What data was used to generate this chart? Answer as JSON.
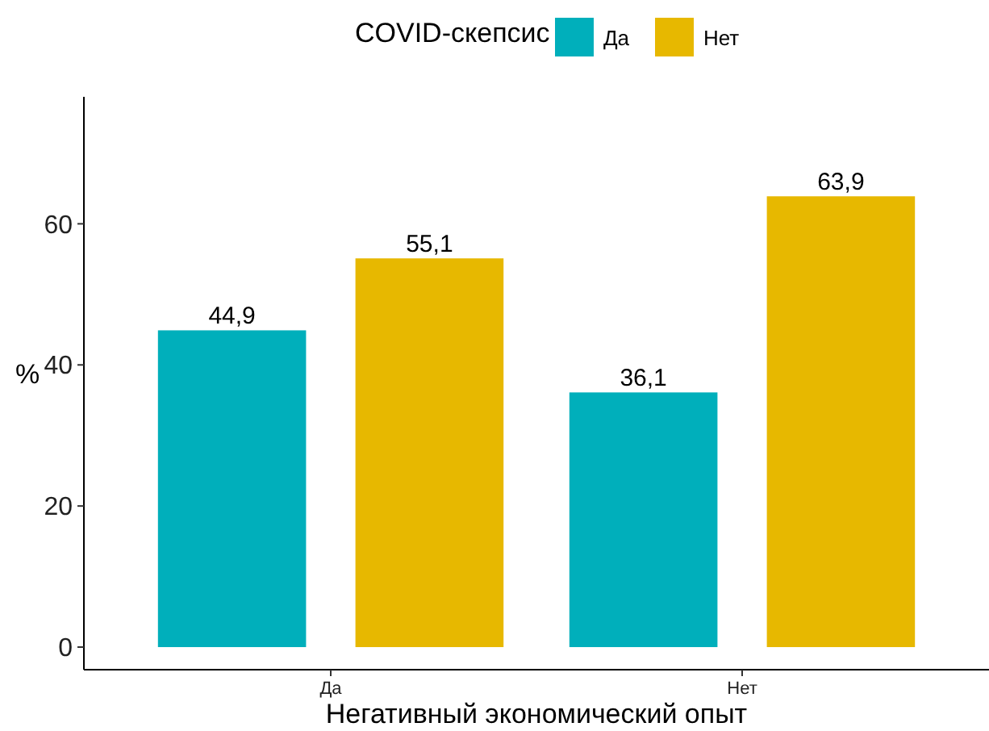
{
  "chart_data": {
    "type": "bar",
    "xlabel": "Негативный экономический опыт",
    "ylabel": "%",
    "legend_title": "COVID-скепсис",
    "legend": "top",
    "categories": [
      "Да",
      "Нет"
    ],
    "series": [
      {
        "name": "Да",
        "color": "#00afbb",
        "values": [
          44.9,
          36.1
        ],
        "value_labels": [
          "44,9",
          "36,1"
        ]
      },
      {
        "name": "Нет",
        "color": "#e7b800",
        "values": [
          55.1,
          63.9
        ],
        "value_labels": [
          "55,1",
          "63,9"
        ]
      }
    ],
    "ylim": [
      -3.2,
      78
    ],
    "yticks": [
      0,
      20,
      40,
      60
    ],
    "grid": false
  }
}
